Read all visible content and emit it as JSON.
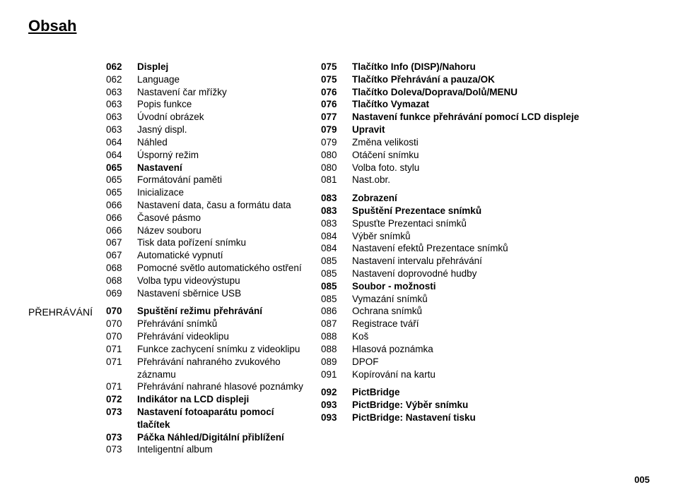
{
  "title": "Obsah",
  "sideLabel": "PŘEHRÁVÁNÍ",
  "pageNumber": "005",
  "left": [
    {
      "num": "062",
      "txt": "Displej",
      "bold": true
    },
    {
      "num": "062",
      "txt": "Language"
    },
    {
      "num": "063",
      "txt": "Nastavení čar mřížky"
    },
    {
      "num": "063",
      "txt": "Popis funkce"
    },
    {
      "num": "063",
      "txt": "Úvodní obrázek"
    },
    {
      "num": "063",
      "txt": "Jasný displ."
    },
    {
      "num": "064",
      "txt": "Náhled"
    },
    {
      "num": "064",
      "txt": "Úsporný režim"
    },
    {
      "num": "065",
      "txt": "Nastavení",
      "bold": true
    },
    {
      "num": "065",
      "txt": "Formátování paměti"
    },
    {
      "num": "065",
      "txt": "Inicializace"
    },
    {
      "num": "066",
      "txt": "Nastavení data, času a formátu data"
    },
    {
      "num": "066",
      "txt": "Časové pásmo"
    },
    {
      "num": "066",
      "txt": "Název souboru"
    },
    {
      "num": "067",
      "txt": "Tisk data pořízení snímku"
    },
    {
      "num": "067",
      "txt": "Automatické vypnutí"
    },
    {
      "num": "068",
      "txt": "Pomocné světlo automatického ostření"
    },
    {
      "num": "068",
      "txt": "Volba typu videovýstupu"
    },
    {
      "num": "069",
      "txt": "Nastavení sběrnice USB"
    }
  ],
  "leftBottom": [
    {
      "num": "070",
      "txt": "Spuštění režimu přehrávání",
      "bold": true
    },
    {
      "num": "070",
      "txt": "Přehrávání snímků"
    },
    {
      "num": "070",
      "txt": "Přehrávání videoklipu"
    },
    {
      "num": "071",
      "txt": "Funkce zachycení snímku z videoklipu"
    },
    {
      "num": "071",
      "txt": "Přehrávání nahraného zvukového záznamu"
    },
    {
      "num": "071",
      "txt": "Přehrávání nahrané hlasové poznámky"
    },
    {
      "num": "072",
      "txt": "Indikátor na LCD displeji",
      "bold": true
    },
    {
      "num": "073",
      "txt": "Nastavení fotoaparátu pomocí tlačítek",
      "bold": true
    },
    {
      "num": "073",
      "txt": "Páčka Náhled/Digitální přiblížení",
      "bold": true
    },
    {
      "num": "073",
      "txt": "Inteligentní album"
    }
  ],
  "right": [
    {
      "num": "075",
      "txt": "Tlačítko Info (DISP)/Nahoru",
      "bold": true
    },
    {
      "num": "075",
      "txt": "Tlačítko Přehrávání a pauza/OK",
      "bold": true
    },
    {
      "num": "076",
      "txt": "Tlačítko Doleva/Doprava/Dolů/MENU",
      "bold": true
    },
    {
      "num": "076",
      "txt": "Tlačítko Vymazat",
      "bold": true
    },
    {
      "num": "077",
      "txt": "Nastavení funkce přehrávání pomocí LCD displeje",
      "bold": true
    },
    {
      "num": "079",
      "txt": "Upravit",
      "bold": true
    },
    {
      "num": "079",
      "txt": "Změna velikosti"
    },
    {
      "num": "080",
      "txt": "Otáčení snímku"
    },
    {
      "num": "080",
      "txt": "Volba foto. stylu"
    },
    {
      "num": "081",
      "txt": "Nast.obr."
    },
    {
      "num": "083",
      "txt": "Zobrazení",
      "bold": true,
      "gapBefore": true
    },
    {
      "num": "083",
      "txt": "Spuštění Prezentace snímků",
      "bold": true
    },
    {
      "num": "083",
      "txt": "Spusťte Prezentaci snímků"
    },
    {
      "num": "084",
      "txt": "Výběr snímků"
    },
    {
      "num": "084",
      "txt": "Nastavení efektů Prezentace snímků"
    },
    {
      "num": "085",
      "txt": "Nastavení intervalu přehrávání"
    },
    {
      "num": "085",
      "txt": "Nastavení doprovodné hudby"
    },
    {
      "num": "085",
      "txt": "Soubor - možnosti",
      "bold": true
    },
    {
      "num": "085",
      "txt": "Vymazání snímků"
    },
    {
      "num": "086",
      "txt": "Ochrana snímků"
    },
    {
      "num": "087",
      "txt": "Registrace tváří"
    },
    {
      "num": "088",
      "txt": "Koš"
    },
    {
      "num": "088",
      "txt": "Hlasová poznámka"
    },
    {
      "num": "089",
      "txt": "DPOF"
    },
    {
      "num": "091",
      "txt": "Kopírování na kartu"
    },
    {
      "num": "092",
      "txt": "PictBridge",
      "bold": true,
      "gapBefore": true
    },
    {
      "num": "093",
      "txt": "PictBridge: Výběr snímku",
      "bold": true
    },
    {
      "num": "093",
      "txt": "PictBridge: Nastavení tisku",
      "bold": true
    }
  ]
}
